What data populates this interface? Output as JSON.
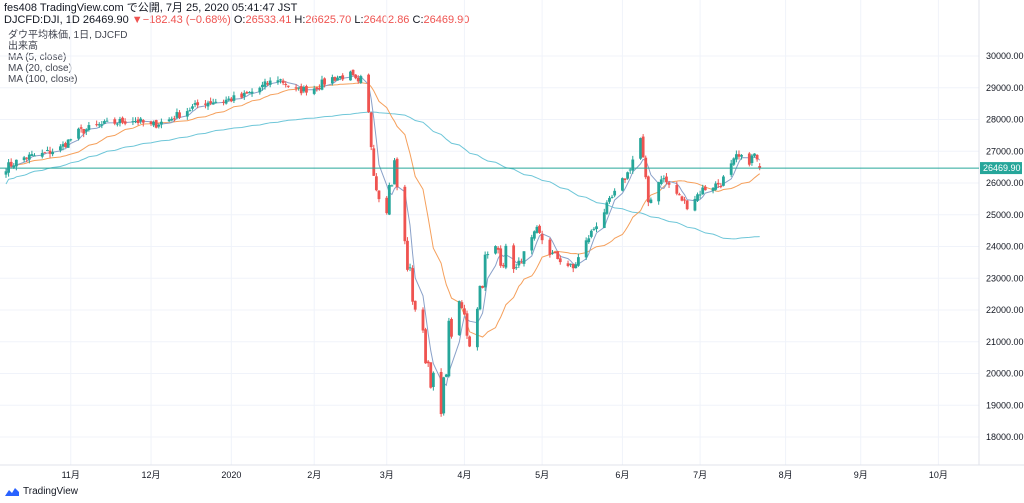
{
  "header": {
    "line1": "fes408 TradingView.com で公開, 7月 25, 2020 05:41:47 JST",
    "symbol": "DJCFD:DJI, 1D",
    "last": "26469.90",
    "change_arrow": "▼",
    "change": "−182.43 (−0.68%)",
    "o_label": "O:",
    "o": "26533.41",
    "h_label": "H:",
    "h": "26625.70",
    "l_label": "L:",
    "l": "26402.86",
    "c_label": "C:",
    "c": "26469.90"
  },
  "legend": {
    "title": "ダウ平均株価, 1日, DJCFD",
    "volume": "出来高",
    "ma5": "MA (5, close)",
    "ma20": "MA (20, close)",
    "ma100": "MA (100, close)"
  },
  "brand": {
    "name": "TradingView"
  },
  "colors": {
    "up": "#26a69a",
    "down": "#ef5350",
    "ma5": "#8aa1c9",
    "ma20": "#f5a05c",
    "ma100": "#6ec6d8",
    "price_line": "#26a69a",
    "grid": "#f0f3fa"
  },
  "chart_data": {
    "type": "candlestick",
    "price_axis": {
      "ticks": [
        18000,
        19000,
        20000,
        21000,
        22000,
        23000,
        24000,
        25000,
        26000,
        27000,
        28000,
        29000,
        30000
      ],
      "tick_labels": [
        "18000.00",
        "19000.00",
        "20000.00",
        "21000.00",
        "22000.00",
        "23000.00",
        "24000.00",
        "25000.00",
        "26000.00",
        "27000.00",
        "28000.00",
        "29000.00",
        "30000.00"
      ],
      "last_price": 26469.9,
      "last_label": "26469.90"
    },
    "time_axis": {
      "labels": [
        "11月",
        "12月",
        "2020",
        "2月",
        "3月",
        "4月",
        "5月",
        "6月",
        "7月",
        "8月",
        "9月",
        "10月"
      ],
      "start": "2019-10-07",
      "tick_dates": [
        "2019-11-01",
        "2019-12-02",
        "2020-01-02",
        "2020-02-03",
        "2020-03-02",
        "2020-04-01",
        "2020-05-01",
        "2020-06-01",
        "2020-07-01",
        "2020-08-03",
        "2020-09-01",
        "2020-10-01"
      ]
    },
    "anchors": [
      [
        "2019-10-07",
        26500
      ],
      [
        "2019-10-14",
        26800
      ],
      [
        "2019-10-21",
        26900
      ],
      [
        "2019-10-28",
        27100
      ],
      [
        "2019-11-04",
        27600
      ],
      [
        "2019-11-11",
        27800
      ],
      [
        "2019-11-18",
        27900
      ],
      [
        "2019-11-25",
        28000
      ],
      [
        "2019-12-02",
        27800
      ],
      [
        "2019-12-09",
        28000
      ],
      [
        "2019-12-16",
        28300
      ],
      [
        "2019-12-23",
        28550
      ],
      [
        "2019-12-30",
        28600
      ],
      [
        "2020-01-06",
        28700
      ],
      [
        "2020-01-13",
        29000
      ],
      [
        "2020-01-20",
        29300
      ],
      [
        "2020-01-27",
        28900
      ],
      [
        "2020-02-03",
        29000
      ],
      [
        "2020-02-10",
        29300
      ],
      [
        "2020-02-17",
        29400
      ],
      [
        "2020-02-21",
        29000
      ],
      [
        "2020-02-24",
        28000
      ],
      [
        "2020-02-27",
        26000
      ],
      [
        "2020-03-02",
        25500
      ],
      [
        "2020-03-05",
        26500
      ],
      [
        "2020-03-09",
        24000
      ],
      [
        "2020-03-12",
        22500
      ],
      [
        "2020-03-16",
        21000
      ],
      [
        "2020-03-19",
        20000
      ],
      [
        "2020-03-23",
        18600
      ],
      [
        "2020-03-26",
        21300
      ],
      [
        "2020-03-31",
        22000
      ],
      [
        "2020-04-03",
        21100
      ],
      [
        "2020-04-09",
        23500
      ],
      [
        "2020-04-14",
        23900
      ],
      [
        "2020-04-21",
        23300
      ],
      [
        "2020-04-29",
        24500
      ],
      [
        "2020-05-04",
        23800
      ],
      [
        "2020-05-13",
        23300
      ],
      [
        "2020-05-19",
        24300
      ],
      [
        "2020-05-27",
        25400
      ],
      [
        "2020-06-03",
        26300
      ],
      [
        "2020-06-08",
        27400
      ],
      [
        "2020-06-11",
        25400
      ],
      [
        "2020-06-16",
        26200
      ],
      [
        "2020-06-26",
        25300
      ],
      [
        "2020-07-02",
        25800
      ],
      [
        "2020-07-09",
        26000
      ],
      [
        "2020-07-15",
        26800
      ],
      [
        "2020-07-20",
        26700
      ],
      [
        "2020-07-22",
        26900
      ],
      [
        "2020-07-24",
        26470
      ]
    ],
    "last_candle": {
      "date": "2020-07-24",
      "open": 26533.41,
      "high": 26625.7,
      "low": 26402.86,
      "close": 26469.9
    },
    "series": [
      {
        "name": "MA (5, close)",
        "period": 5
      },
      {
        "name": "MA (20, close)",
        "period": 20
      },
      {
        "name": "MA (100, close)",
        "period": 100
      }
    ]
  }
}
